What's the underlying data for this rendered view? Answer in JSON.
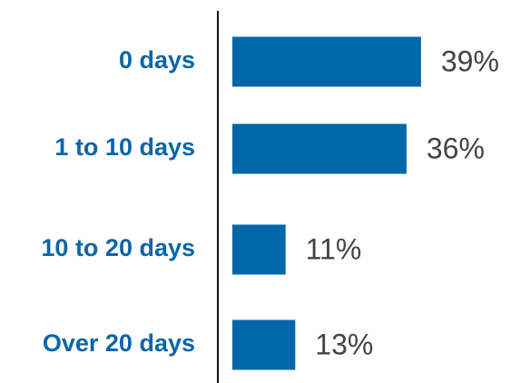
{
  "chart_data": {
    "type": "bar",
    "orientation": "horizontal",
    "categories": [
      "0 days",
      "1 to 10 days",
      "10 to 20 days",
      "Over 20 days"
    ],
    "values": [
      39,
      36,
      11,
      13
    ],
    "value_labels": [
      "39%",
      "36%",
      "11%",
      "13%"
    ],
    "color": "#0067a8"
  }
}
